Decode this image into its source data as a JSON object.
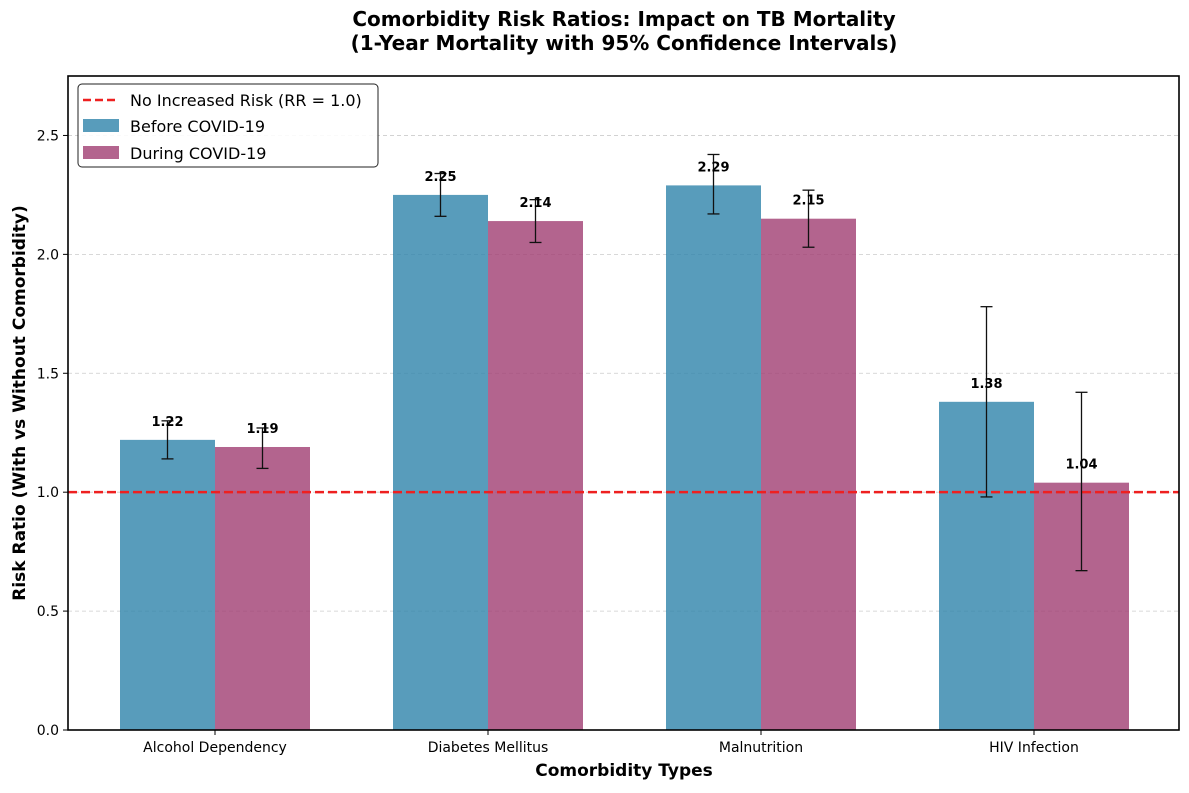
{
  "chart_data": {
    "type": "bar",
    "title_line1": "Comorbidity Risk Ratios: Impact on TB Mortality",
    "title_line2": "(1-Year Mortality with 95% Confidence Intervals)",
    "xlabel": "Comorbidity Types",
    "ylabel": "Risk Ratio (With vs Without Comorbidity)",
    "categories": [
      "Alcohol Dependency",
      "Diabetes Mellitus",
      "Malnutrition",
      "HIV Infection"
    ],
    "ylim": [
      0,
      2.75
    ],
    "yticks": [
      "0.0",
      "0.5",
      "1.0",
      "1.5",
      "2.0",
      "2.5"
    ],
    "grid": "horizontal dashed",
    "legend_position": "top-left",
    "series": [
      {
        "name": "Before COVID-19",
        "color": "#2e83aa",
        "values": [
          1.22,
          2.25,
          2.29,
          1.38
        ],
        "labels": [
          "1.22",
          "2.25",
          "2.29",
          "1.38"
        ],
        "ci_low": [
          1.14,
          2.16,
          2.17,
          0.98
        ],
        "ci_high": [
          1.3,
          2.34,
          2.42,
          1.78
        ]
      },
      {
        "name": "During COVID-19",
        "color": "#a03d72",
        "values": [
          1.19,
          2.14,
          2.15,
          1.04
        ],
        "labels": [
          "1.19",
          "2.14",
          "2.15",
          "1.04"
        ],
        "ci_low": [
          1.1,
          2.05,
          2.03,
          0.67
        ],
        "ci_high": [
          1.27,
          2.23,
          2.27,
          1.42
        ]
      }
    ],
    "reference_line": {
      "value": 1.0,
      "label": "No Increased Risk (RR = 1.0)",
      "color": "#ee2020"
    }
  }
}
